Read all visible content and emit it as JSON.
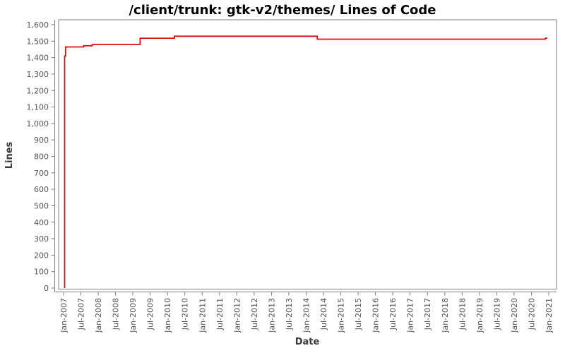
{
  "chart_data": {
    "type": "line",
    "title": "/client/trunk: gtk-v2/themes/ Lines of Code",
    "xlabel": "Date",
    "ylabel": "Lines",
    "series_name": "Lines of Code",
    "step_mode": "after",
    "legend": "none",
    "grid": "off",
    "colors": {
      "line": "#e00d0d",
      "frame": "#808080",
      "tick_labels": "#555555",
      "axis_titles": "#3a3a3a",
      "title": "#000000",
      "background": "#ffffff"
    },
    "ylim": [
      0,
      1600
    ],
    "y_tick_step": 100,
    "y_tick_values": [
      0,
      100,
      200,
      300,
      400,
      500,
      600,
      700,
      800,
      900,
      1000,
      1100,
      1200,
      1300,
      1400,
      1500,
      1600
    ],
    "y_tick_labels": [
      "0",
      "100",
      "200",
      "300",
      "400",
      "500",
      "600",
      "700",
      "800",
      "900",
      "1,000",
      "1,100",
      "1,200",
      "1,300",
      "1,400",
      "1,500",
      "1,600"
    ],
    "x_tick_interval_months": 6,
    "x_tick_labels": [
      "Jan-2007",
      "Jul-2007",
      "Jan-2008",
      "Jul-2008",
      "Jan-2009",
      "Jul-2009",
      "Jan-2010",
      "Jul-2010",
      "Jan-2011",
      "Jul-2011",
      "Jan-2012",
      "Jul-2012",
      "Jan-2013",
      "Jul-2013",
      "Jan-2014",
      "Jul-2014",
      "Jan-2015",
      "Jul-2015",
      "Jan-2016",
      "Jul-2016",
      "Jan-2017",
      "Jul-2017",
      "Jan-2018",
      "Jul-2018",
      "Jan-2019",
      "Jul-2019",
      "Jan-2020",
      "Jul-2020",
      "Jan-2021"
    ],
    "points": [
      {
        "date": "Jan-2007",
        "year": 2007.03,
        "value": 0
      },
      {
        "date": "Jan-2007",
        "year": 2007.03,
        "value": 1410
      },
      {
        "date": "Feb-2007",
        "year": 2007.06,
        "value": 1465
      },
      {
        "date": "Aug-2007",
        "year": 2007.58,
        "value": 1472
      },
      {
        "date": "Nov-2007",
        "year": 2007.83,
        "value": 1480
      },
      {
        "date": "Mar-2009",
        "year": 2009.21,
        "value": 1518
      },
      {
        "date": "Mar-2010",
        "year": 2010.2,
        "value": 1530
      },
      {
        "date": "May-2014",
        "year": 2014.32,
        "value": 1512
      },
      {
        "date": "Nov-2020",
        "year": 2020.9,
        "value": 1518
      },
      {
        "date": "Dec-2020",
        "year": 2020.96,
        "value": 1518
      }
    ]
  }
}
